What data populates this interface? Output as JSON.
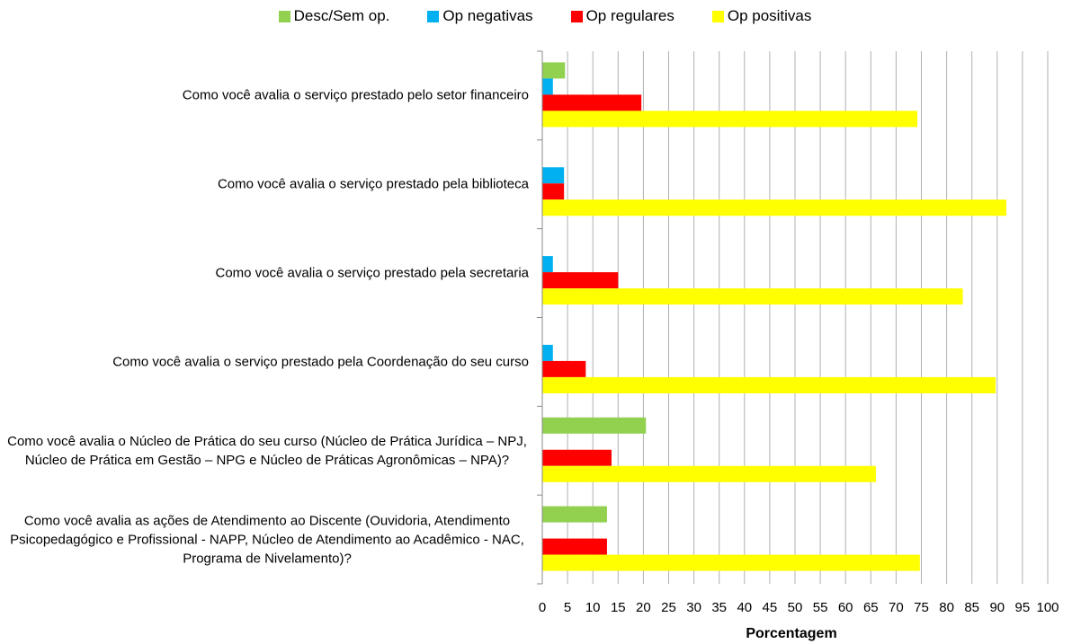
{
  "chart_data": {
    "type": "hbar",
    "categories": [
      "Como você avalia o serviço prestado pelo setor financeiro",
      "Como você avalia o serviço prestado pela biblioteca",
      "Como você avalia o serviço prestado pela secretaria",
      "Como você avalia o serviço prestado pela Coordenação do seu curso",
      "Como você avalia o Núcleo de Prática do seu curso (Núcleo de Prática Jurídica – NPJ, Núcleo de Prática em Gestão – NPG e Núcleo de Práticas Agronômicas – NPA)?",
      "Como você avalia as ações de Atendimento ao Discente (Ouvidoria, Atendimento Psicopedagógico e Profissional - NAPP, Núcleo de Atendimento ao Acadêmico - NAC, Programa de Nivelamento)?"
    ],
    "series": [
      {
        "name": "Desc/Sem op.",
        "color": "#92d050",
        "values": [
          4.5,
          0,
          0,
          0,
          20.5,
          12.8
        ]
      },
      {
        "name": "Op negativas",
        "color": "#00b0f0",
        "values": [
          2.1,
          4.3,
          2.1,
          2.1,
          0,
          0
        ]
      },
      {
        "name": "Op regulares",
        "color": "#ff0000",
        "values": [
          19.6,
          4.3,
          15,
          8.6,
          13.7,
          12.8
        ]
      },
      {
        "name": "Op positivas",
        "color": "#ffff00",
        "values": [
          74.2,
          91.8,
          83.2,
          89.7,
          66,
          74.7
        ]
      }
    ],
    "xlabel": "Porcentagem",
    "xlim": [
      0,
      100
    ],
    "xticks": [
      0,
      5,
      10,
      15,
      20,
      25,
      30,
      35,
      40,
      45,
      50,
      55,
      60,
      65,
      70,
      75,
      80,
      85,
      90,
      95,
      100
    ],
    "grid": true,
    "legend": "top"
  }
}
